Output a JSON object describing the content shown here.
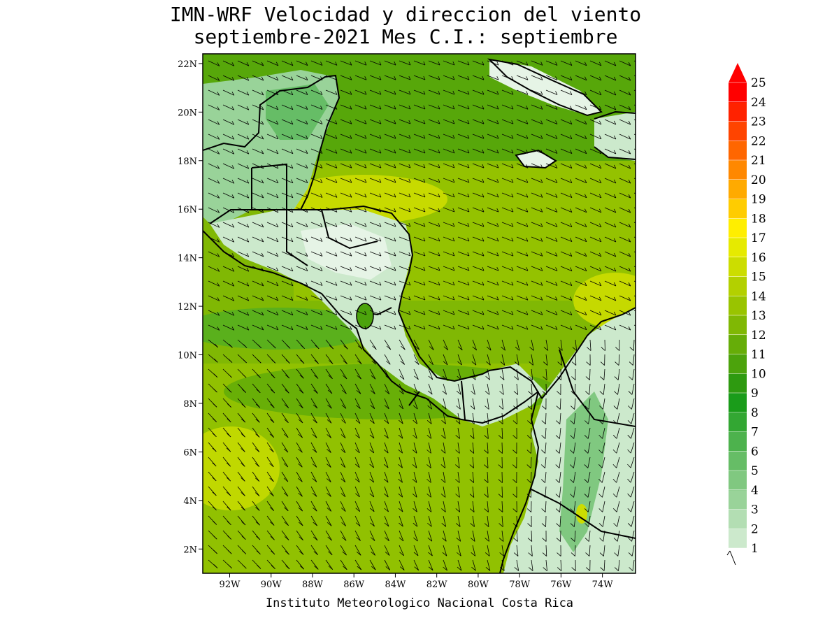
{
  "title_line1": "IMN-WRF Velocidad y direccion del viento",
  "title_line2": "septiembre-2021 Mes C.I.: septiembre",
  "credit": "Instituto Meteorologico Nacional Costa Rica",
  "map": {
    "lon_range": [
      -93.3,
      -72.4
    ],
    "lat_range": [
      1.0,
      22.4
    ],
    "lat_ticks": [
      {
        "value": 22,
        "label": "22N"
      },
      {
        "value": 20,
        "label": "20N"
      },
      {
        "value": 18,
        "label": "18N"
      },
      {
        "value": 16,
        "label": "16N"
      },
      {
        "value": 14,
        "label": "14N"
      },
      {
        "value": 12,
        "label": "12N"
      },
      {
        "value": 10,
        "label": "10N"
      },
      {
        "value": 8,
        "label": "8N"
      },
      {
        "value": 6,
        "label": "6N"
      },
      {
        "value": 4,
        "label": "4N"
      },
      {
        "value": 2,
        "label": "2N"
      }
    ],
    "lon_ticks": [
      {
        "value": -92,
        "label": "92W"
      },
      {
        "value": -90,
        "label": "90W"
      },
      {
        "value": -88,
        "label": "88W"
      },
      {
        "value": -86,
        "label": "86W"
      },
      {
        "value": -84,
        "label": "84W"
      },
      {
        "value": -82,
        "label": "82W"
      },
      {
        "value": -80,
        "label": "80W"
      },
      {
        "value": -78,
        "label": "78W"
      },
      {
        "value": -76,
        "label": "76W"
      },
      {
        "value": -74,
        "label": "74W"
      }
    ]
  },
  "colorbar": {
    "levels": [
      "1",
      "2",
      "3",
      "4",
      "5",
      "6",
      "7",
      "8",
      "9",
      "10",
      "11",
      "12",
      "13",
      "14",
      "15",
      "16",
      "17",
      "18",
      "19",
      "20",
      "21",
      "22",
      "23",
      "24",
      "25"
    ],
    "colors": [
      "#e6f4e6",
      "#cce9cc",
      "#b3deb3",
      "#99d399",
      "#80c880",
      "#66bd66",
      "#4db24d",
      "#33a733",
      "#1a9c1a",
      "#2e9a10",
      "#4ca30c",
      "#66ad08",
      "#80b804",
      "#99c400",
      "#b3d000",
      "#ccdd00",
      "#e6ea00",
      "#ffee00",
      "#ffcc00",
      "#ffaa00",
      "#ff8800",
      "#ff6600",
      "#ff4400",
      "#ff2200",
      "#ff0000"
    ]
  },
  "legend_barb": "barb-icon"
}
